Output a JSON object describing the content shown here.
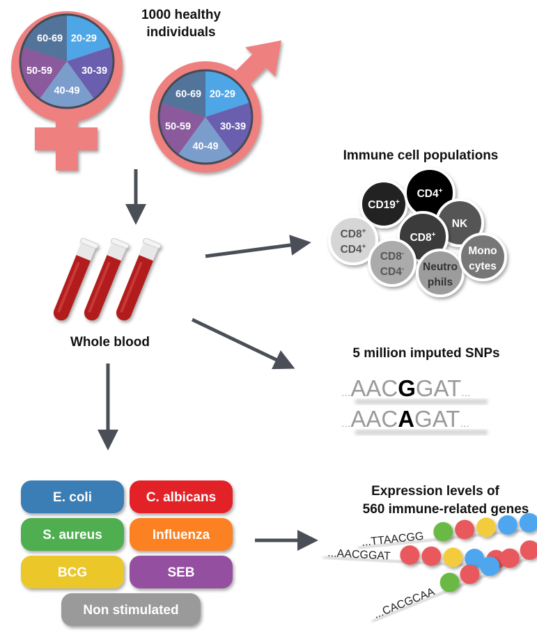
{
  "cohort": {
    "title_line1": "1000 healthy",
    "title_line2": "individuals",
    "age_groups": [
      "20-29",
      "30-39",
      "40-49",
      "50-59",
      "60-69"
    ],
    "age_colors": [
      "#4fa6e6",
      "#6a5eae",
      "#7a9dcc",
      "#8a5a9c",
      "#52739a"
    ],
    "symbol_color": "#ee8080",
    "female_icon": "female-symbol",
    "male_icon": "male-symbol"
  },
  "blood": {
    "label": "Whole blood",
    "icon": "blood-tubes"
  },
  "immune": {
    "title": "Immune cell populations",
    "cells": [
      {
        "l1": "CD19",
        "s1": "+",
        "l2": "",
        "s2": "",
        "color": "#222222",
        "text": "#ffffff"
      },
      {
        "l1": "CD4",
        "s1": "+",
        "l2": "",
        "s2": "",
        "color": "#000000",
        "text": "#ffffff"
      },
      {
        "l1": "NK",
        "s1": "",
        "l2": "",
        "s2": "",
        "color": "#555555",
        "text": "#ffffff"
      },
      {
        "l1": "CD8",
        "s1": "+",
        "l2": "",
        "s2": "",
        "color": "#3a3a3a",
        "text": "#ffffff"
      },
      {
        "l1": "CD8",
        "s1": "+",
        "l2": "CD4",
        "s2": "+",
        "color": "#d6d6d6",
        "text": "#555555"
      },
      {
        "l1": "CD8",
        "s1": "-",
        "l2": "CD4",
        "s2": "-",
        "color": "#ababab",
        "text": "#555555"
      },
      {
        "l1": "Neutro",
        "s1": "",
        "l2": "phils",
        "s2": "",
        "color": "#9c9c9c",
        "text": "#333333"
      },
      {
        "l1": "Mono",
        "s1": "",
        "l2": "cytes",
        "s2": "",
        "color": "#777777",
        "text": "#ffffff"
      }
    ]
  },
  "snps": {
    "title": "5 million imputed SNPs",
    "rows": [
      {
        "pre": "AAC",
        "alt": "G",
        "post": "GAT"
      },
      {
        "pre": "AAC",
        "alt": "A",
        "post": "GAT"
      }
    ],
    "ellipsis": "..."
  },
  "stimuli": {
    "buttons": [
      {
        "label": "E. coli",
        "color": "#3a7db5"
      },
      {
        "label": "C. albicans",
        "color": "#e22228"
      },
      {
        "label": "S. aureus",
        "color": "#4fae4f"
      },
      {
        "label": "Influenza",
        "color": "#fb8124"
      },
      {
        "label": "BCG",
        "color": "#ebc72a"
      },
      {
        "label": "SEB",
        "color": "#944fa0"
      },
      {
        "label": "Non stimulated",
        "color": "#9a9a9a"
      }
    ]
  },
  "expression": {
    "title_line1": "Expression levels of",
    "title_line2": "560 immune-related genes",
    "sequences": [
      {
        "seq": "...TTAACGG",
        "beads": [
          "#6bb944",
          "#e8585c",
          "#f2cc3c",
          "#4ea6ee",
          "#4ea6ee"
        ]
      },
      {
        "seq": "...AACGGAT",
        "beads": [
          "#e8585c",
          "#e8585c",
          "#f2cc3c",
          "#4ea6ee",
          "#e8585c"
        ]
      },
      {
        "seq": "...CACGCAA",
        "beads": [
          "#6bb944",
          "#e8585c",
          "#4ea6ee",
          "#e8585c",
          "#e8585c"
        ]
      }
    ]
  },
  "colors": {
    "arrow": "#4a4f57"
  }
}
